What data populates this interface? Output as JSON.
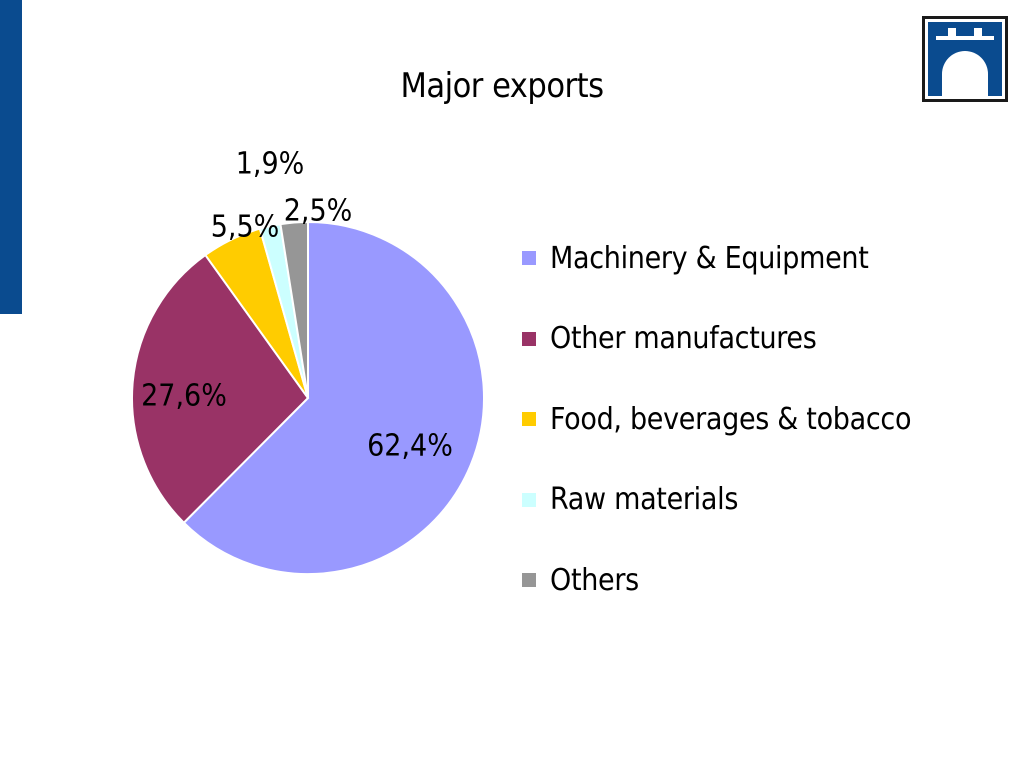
{
  "chart_data": {
    "type": "pie",
    "title": "Major exports",
    "slices": [
      {
        "name": "Machinery & Equipment",
        "value": 62.4,
        "label": "62,4%",
        "color": "#9999ff"
      },
      {
        "name": "Other manufactures",
        "value": 27.6,
        "label": "27,6%",
        "color": "#993366"
      },
      {
        "name": "Food, beverages & tobacco",
        "value": 5.5,
        "label": "5,5%",
        "color": "#ffcc00"
      },
      {
        "name": "Raw materials",
        "value": 1.9,
        "label": "1,9%",
        "color": "#ccffff"
      },
      {
        "name": "Others",
        "value": 2.5,
        "label": "2,5%",
        "color": "#969696"
      }
    ],
    "legend_position": "right"
  },
  "branding": {
    "accent_color": "#0a4b8f",
    "logo_icon": "bridge-logo-icon"
  }
}
